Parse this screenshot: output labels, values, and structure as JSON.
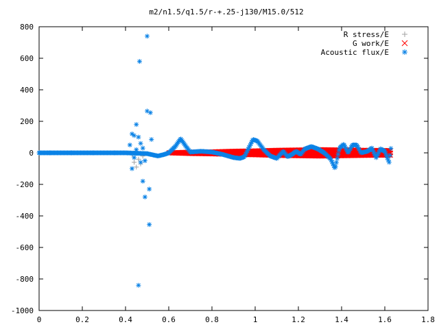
{
  "chart_data": {
    "type": "scatter",
    "title": "m2/n1.5/q1.5/r-+.25-j130/M15.0/512",
    "xlabel": "",
    "ylabel": "",
    "xlim": [
      0,
      1.8
    ],
    "ylim": [
      -1000,
      800
    ],
    "x_ticks": [
      0,
      0.2,
      0.4,
      0.6,
      0.8,
      1,
      1.2,
      1.4,
      1.6,
      1.8
    ],
    "y_ticks": [
      -1000,
      -800,
      -600,
      -400,
      -200,
      0,
      200,
      400,
      600,
      800
    ],
    "grid": false,
    "legend_position": "top-right",
    "series": [
      {
        "name": "R stress/E",
        "marker": "plus",
        "color": "#a0a0a0",
        "points": [
          [
            0.43,
            -10
          ],
          [
            0.44,
            -60
          ],
          [
            0.45,
            -90
          ],
          [
            0.46,
            -40
          ],
          [
            0.47,
            -70
          ],
          [
            0.48,
            -20
          ]
        ]
      },
      {
        "name": "G work/E",
        "marker": "cross",
        "color": "#ff0000",
        "band_range": [
          0.6,
          1.63
        ],
        "band_halfwidth": [
          [
            0.6,
            2
          ],
          [
            0.7,
            6
          ],
          [
            0.8,
            8
          ],
          [
            0.9,
            12
          ],
          [
            1.0,
            14
          ],
          [
            1.1,
            18
          ],
          [
            1.2,
            20
          ],
          [
            1.3,
            22
          ],
          [
            1.4,
            20
          ],
          [
            1.5,
            18
          ],
          [
            1.63,
            16
          ]
        ]
      },
      {
        "name": "Acoustic flux/E",
        "marker": "star",
        "color": "#0a82e6",
        "points": [
          [
            0.0,
            0
          ],
          [
            0.05,
            0
          ],
          [
            0.1,
            0
          ],
          [
            0.15,
            0
          ],
          [
            0.2,
            0
          ],
          [
            0.25,
            0
          ],
          [
            0.3,
            0
          ],
          [
            0.35,
            0
          ],
          [
            0.4,
            0
          ],
          [
            0.42,
            50
          ],
          [
            0.43,
            120
          ],
          [
            0.44,
            110
          ],
          [
            0.45,
            180
          ],
          [
            0.46,
            100
          ],
          [
            0.465,
            580
          ],
          [
            0.47,
            60
          ],
          [
            0.48,
            -180
          ],
          [
            0.49,
            -280
          ],
          [
            0.5,
            740
          ],
          [
            0.5,
            265
          ],
          [
            0.51,
            -230
          ],
          [
            0.51,
            -455
          ],
          [
            0.515,
            255
          ],
          [
            0.52,
            85
          ],
          [
            0.46,
            -840
          ],
          [
            0.43,
            -100
          ],
          [
            0.44,
            -30
          ],
          [
            0.45,
            20
          ],
          [
            0.47,
            -60
          ],
          [
            0.48,
            30
          ],
          [
            0.49,
            -50
          ]
        ],
        "curve": [
          [
            0.0,
            0
          ],
          [
            0.4,
            0
          ],
          [
            0.5,
            -5
          ],
          [
            0.55,
            -20
          ],
          [
            0.58,
            -10
          ],
          [
            0.6,
            0
          ],
          [
            0.63,
            40
          ],
          [
            0.655,
            90
          ],
          [
            0.68,
            40
          ],
          [
            0.7,
            5
          ],
          [
            0.75,
            10
          ],
          [
            0.8,
            5
          ],
          [
            0.85,
            -10
          ],
          [
            0.9,
            -30
          ],
          [
            0.93,
            -35
          ],
          [
            0.95,
            -25
          ],
          [
            0.97,
            30
          ],
          [
            0.99,
            85
          ],
          [
            1.01,
            75
          ],
          [
            1.04,
            20
          ],
          [
            1.07,
            -20
          ],
          [
            1.1,
            -35
          ],
          [
            1.13,
            10
          ],
          [
            1.15,
            -25
          ],
          [
            1.17,
            -10
          ],
          [
            1.19,
            10
          ],
          [
            1.21,
            -10
          ],
          [
            1.23,
            25
          ],
          [
            1.26,
            40
          ],
          [
            1.29,
            25
          ],
          [
            1.32,
            0
          ],
          [
            1.35,
            -40
          ],
          [
            1.37,
            -100
          ],
          [
            1.39,
            30
          ],
          [
            1.41,
            55
          ],
          [
            1.43,
            0
          ],
          [
            1.45,
            50
          ],
          [
            1.47,
            50
          ],
          [
            1.49,
            0
          ],
          [
            1.52,
            10
          ],
          [
            1.54,
            30
          ],
          [
            1.56,
            -30
          ],
          [
            1.58,
            25
          ],
          [
            1.6,
            10
          ],
          [
            1.62,
            -60
          ],
          [
            1.63,
            50
          ]
        ]
      }
    ]
  }
}
